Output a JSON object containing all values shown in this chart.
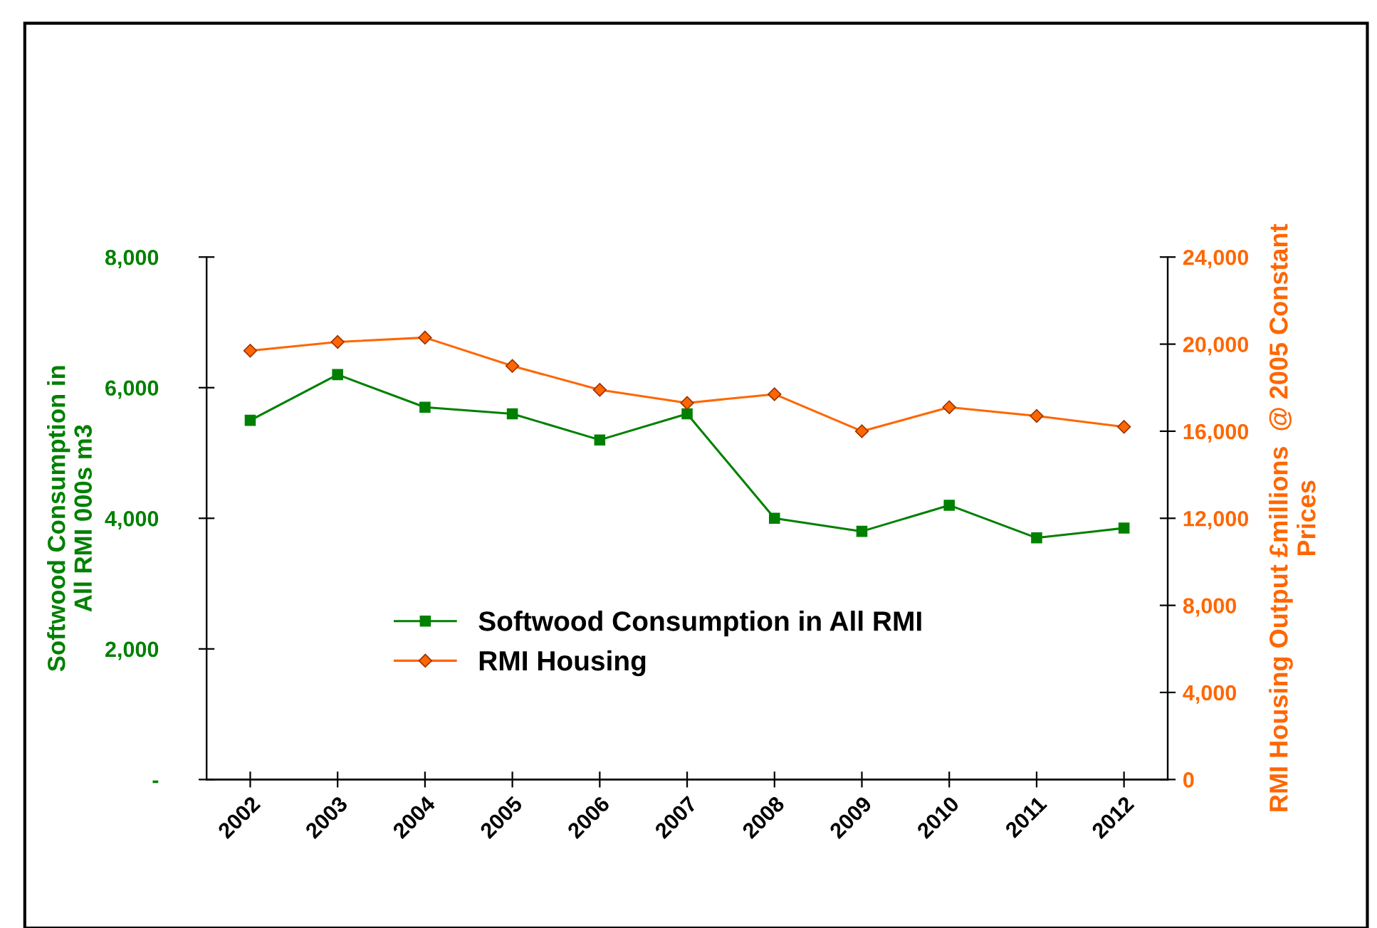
{
  "chart_data": {
    "type": "line",
    "categories": [
      "2002",
      "2003",
      "2004",
      "2005",
      "2006",
      "2007",
      "2008",
      "2009",
      "2010",
      "2011",
      "2012"
    ],
    "ylabel": "Softwood Consumption in\nAll RMI 000s m3",
    "y2label": "RMI Housing Output £millions  @ 2005 Constant\nPrices",
    "series": [
      {
        "name": "Softwood Consumption in All RMI",
        "color": "#008000",
        "marker": "square",
        "values": [
          5500,
          6200,
          5700,
          5600,
          5200,
          5600,
          4000,
          3800,
          4200,
          3700,
          3850
        ]
      },
      {
        "name": "RMI Housing",
        "color": "#ff6600",
        "marker": "diamond",
        "axis": "y2",
        "values": [
          19700,
          20100,
          20300,
          19000,
          17900,
          17300,
          17700,
          16000,
          17100,
          16700,
          16200
        ]
      }
    ],
    "ylim": [
      0,
      8000
    ],
    "yticks": [
      {
        "value": 0,
        "label": "-"
      },
      {
        "value": 2000,
        "label": "2,000"
      },
      {
        "value": 4000,
        "label": "4,000"
      },
      {
        "value": 6000,
        "label": "6,000"
      },
      {
        "value": 8000,
        "label": "8,000"
      }
    ],
    "y2lim": [
      0,
      24000
    ],
    "y2ticks": [
      {
        "value": 0,
        "label": "0"
      },
      {
        "value": 4000,
        "label": "4,000"
      },
      {
        "value": 8000,
        "label": "8,000"
      },
      {
        "value": 12000,
        "label": "12,000"
      },
      {
        "value": 16000,
        "label": "16,000"
      },
      {
        "value": 20000,
        "label": "20,000"
      },
      {
        "value": 24000,
        "label": "24,000"
      }
    ],
    "grid": false,
    "legend": "bottom left"
  }
}
